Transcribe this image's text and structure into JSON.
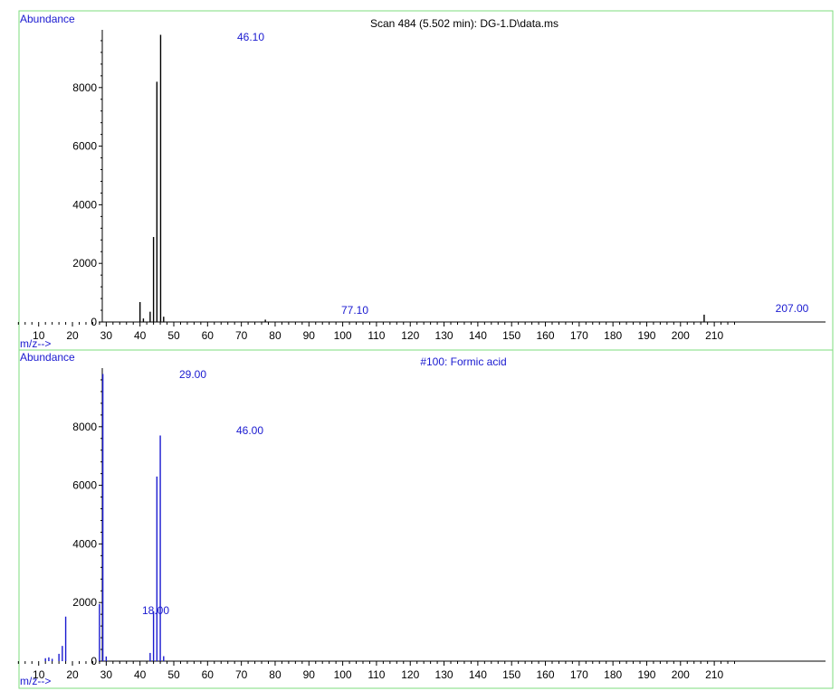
{
  "panels": [
    {
      "ylabel": "Abundance",
      "xlabel": "m/z-->",
      "title": "Scan 484 (5.502 min): DG-1.D\\data.ms",
      "color": "#000000",
      "label_color": "#1a1ad0",
      "peak_labels": [
        "46.10",
        "77.10",
        "207.00"
      ]
    },
    {
      "ylabel": "Abundance",
      "xlabel": "m/z-->",
      "title": "#100: Formic acid",
      "color": "#1a1ad0",
      "label_color": "#1a1ad0",
      "peak_labels": [
        "29.00",
        "46.00",
        "18.00"
      ]
    }
  ],
  "chart_data": [
    {
      "type": "bar",
      "title": "Scan 484 (5.502 min): DG-1.D\\data.ms",
      "xlabel": "m/z-->",
      "ylabel": "Abundance",
      "xlim": [
        2,
        217
      ],
      "ylim": [
        0,
        10000
      ],
      "xticks": [
        10,
        20,
        30,
        40,
        50,
        60,
        70,
        80,
        90,
        100,
        110,
        120,
        130,
        140,
        150,
        160,
        170,
        180,
        190,
        200,
        210
      ],
      "yticks": [
        0,
        2000,
        4000,
        6000,
        8000
      ],
      "grid": false,
      "series": [
        {
          "x": [
            40,
            41,
            43,
            44,
            45,
            46.1,
            47,
            77.1,
            207
          ],
          "values": [
            680,
            120,
            350,
            2900,
            8200,
            9800,
            180,
            80,
            250
          ]
        }
      ],
      "annotations": [
        {
          "x": 46.1,
          "text": "46.10"
        },
        {
          "x": 77.1,
          "text": "77.10"
        },
        {
          "x": 207,
          "text": "207.00"
        }
      ]
    },
    {
      "type": "bar",
      "title": "#100: Formic acid",
      "xlabel": "m/z-->",
      "ylabel": "Abundance",
      "xlim": [
        2,
        217
      ],
      "ylim": [
        0,
        10000
      ],
      "xticks": [
        10,
        20,
        30,
        40,
        50,
        60,
        70,
        80,
        90,
        100,
        110,
        120,
        130,
        140,
        150,
        160,
        170,
        180,
        190,
        200,
        210
      ],
      "yticks": [
        0,
        2000,
        4000,
        6000,
        8000
      ],
      "grid": false,
      "series": [
        {
          "x": [
            12,
            13,
            14,
            16,
            17,
            18,
            28,
            29,
            30,
            43,
            44,
            45,
            46,
            47
          ],
          "values": [
            100,
            130,
            80,
            250,
            520,
            1520,
            1950,
            9800,
            160,
            280,
            1700,
            6300,
            7700,
            170
          ]
        }
      ],
      "annotations": [
        {
          "x": 29,
          "text": "29.00"
        },
        {
          "x": 46,
          "text": "46.00"
        },
        {
          "x": 18,
          "text": "18.00"
        }
      ]
    }
  ]
}
